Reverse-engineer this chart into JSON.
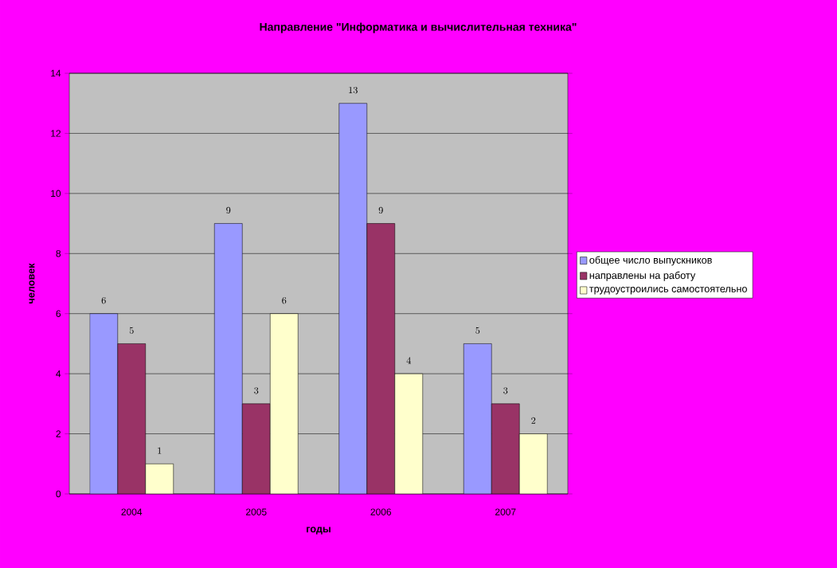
{
  "chart_data": {
    "type": "bar",
    "title": "Направление  \"Информатика и вычислительная техника\"",
    "xlabel": "годы",
    "ylabel": "человек",
    "categories": [
      "2004",
      "2005",
      "2006",
      "2007"
    ],
    "series": [
      {
        "name": "общее число выпускников",
        "color": "#9999ff",
        "values": [
          6,
          9,
          13,
          5
        ]
      },
      {
        "name": "направлены на работу",
        "color": "#993366",
        "values": [
          5,
          3,
          9,
          3
        ]
      },
      {
        "name": "трудоустроились самостоятельно",
        "color": "#ffffcc",
        "values": [
          1,
          6,
          4,
          2
        ]
      }
    ],
    "ylim": [
      0,
      14
    ],
    "yticks": [
      0,
      2,
      4,
      6,
      8,
      10,
      12,
      14
    ],
    "grid": "y",
    "legend": "right",
    "data_labels": true
  }
}
